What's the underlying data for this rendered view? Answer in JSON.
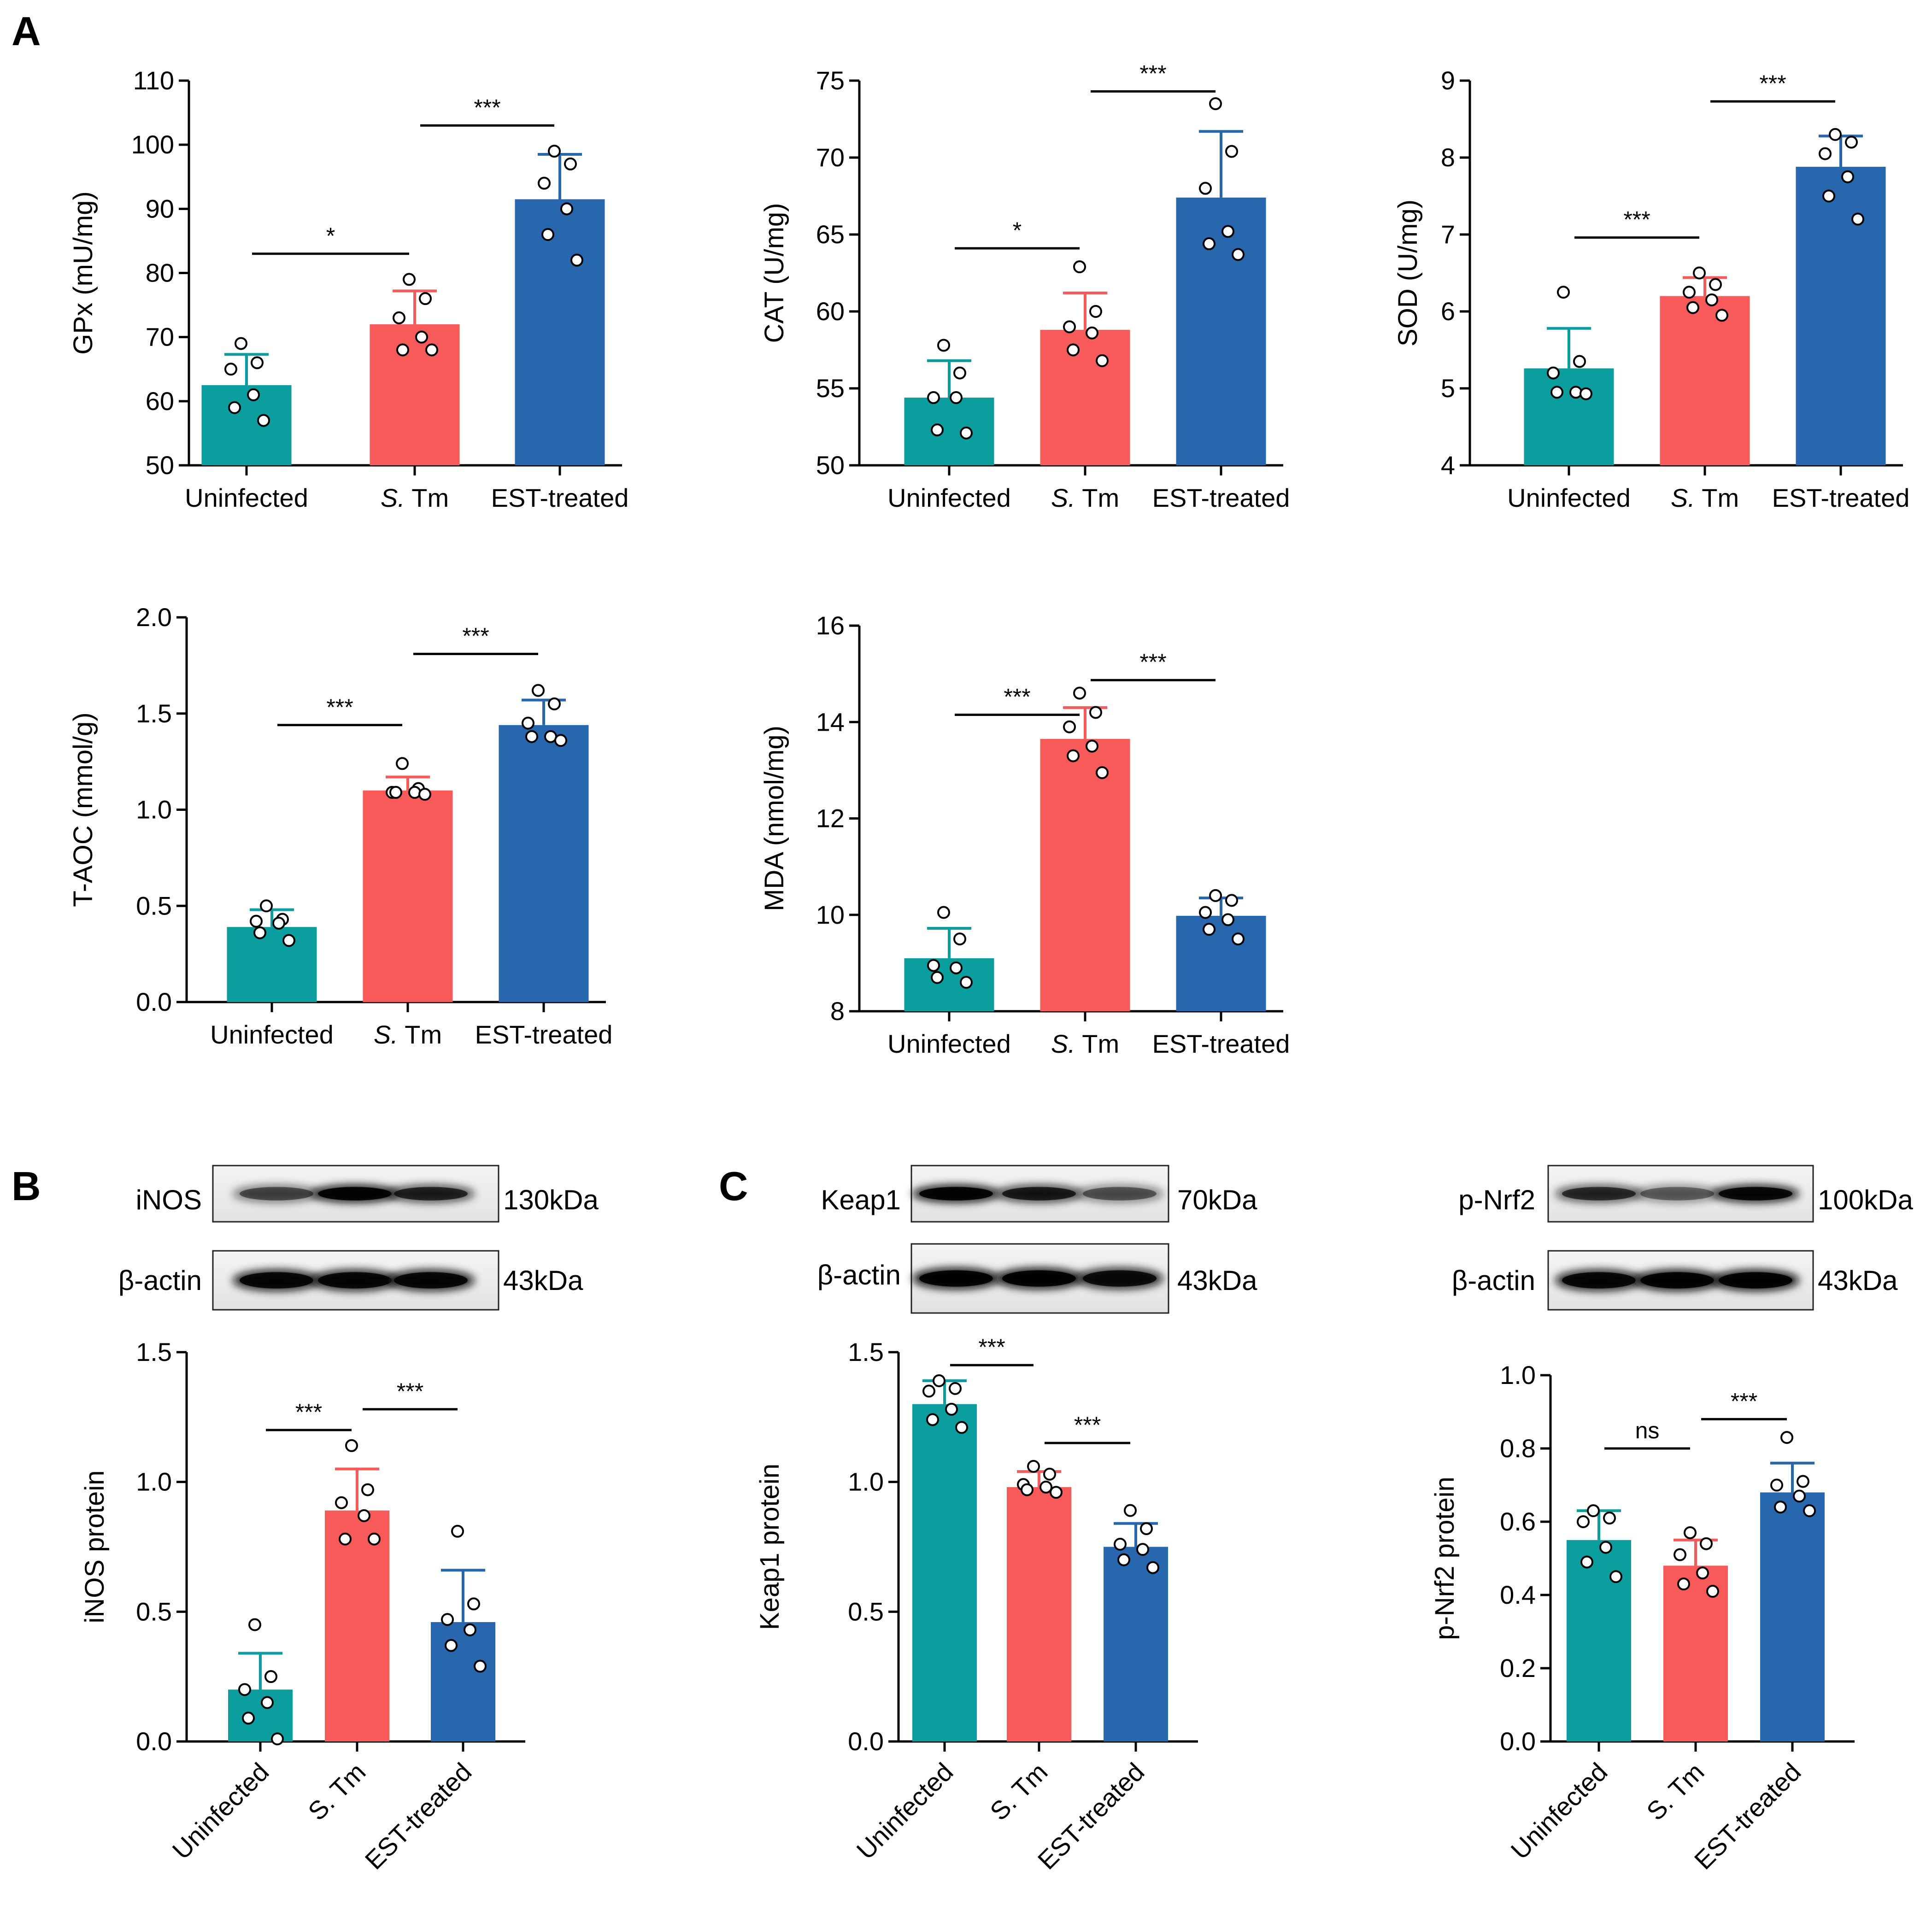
{
  "panel_labels": {
    "a": "A",
    "b": "B",
    "c": "C"
  },
  "colors": {
    "uninfected": "#0a9e9e",
    "s_tm": "#f85a5a",
    "est": "#2767ad"
  },
  "chart_data": [
    {
      "type": "bar",
      "ylabel": "GPx (mU/mg)",
      "categories": [
        "Uninfected",
        "S. Tm",
        "EST-treated"
      ],
      "ylim": [
        50,
        110
      ],
      "yticks": [
        "50",
        "60",
        "70",
        "80",
        "90",
        "100",
        "110"
      ],
      "values": [
        62.5,
        72,
        91.5
      ],
      "errors": [
        4.8,
        5.2,
        7.0
      ],
      "points": [
        [
          69,
          66,
          65,
          61,
          59,
          57
        ],
        [
          79,
          76,
          73,
          70,
          68,
          68
        ],
        [
          99,
          97,
          94,
          90,
          86,
          82
        ]
      ],
      "comparisons": [
        {
          "from": 0,
          "to": 1,
          "label": "*",
          "y": 83
        },
        {
          "from": 1,
          "to": 2,
          "label": "***",
          "y": 103
        }
      ]
    },
    {
      "type": "bar",
      "ylabel": "CAT (U/mg)",
      "categories": [
        "Uninfected",
        "S. Tm",
        "EST-treated"
      ],
      "ylim": [
        50,
        75
      ],
      "yticks": [
        "50",
        "55",
        "60",
        "65",
        "70",
        "75"
      ],
      "values": [
        54.4,
        58.8,
        67.4
      ],
      "errors": [
        2.4,
        2.4,
        4.3
      ],
      "points": [
        [
          57.8,
          56.0,
          54.4,
          54.4,
          52.3,
          52.1
        ],
        [
          62.9,
          60.0,
          59.0,
          58.6,
          57.5,
          56.8
        ],
        [
          73.5,
          70.4,
          68.0,
          65.2,
          64.4,
          63.7
        ]
      ],
      "comparisons": [
        {
          "from": 0,
          "to": 1,
          "label": "*",
          "y": 64.1
        },
        {
          "from": 1,
          "to": 2,
          "label": "***",
          "y": 74.3
        }
      ]
    },
    {
      "type": "bar",
      "ylabel": "SOD (U/mg)",
      "categories": [
        "Uninfected",
        "S. Tm",
        "EST-treated"
      ],
      "ylim": [
        4,
        9
      ],
      "yticks": [
        "4",
        "5",
        "6",
        "7",
        "8",
        "9"
      ],
      "values": [
        5.26,
        6.2,
        7.88
      ],
      "errors": [
        0.52,
        0.24,
        0.4
      ],
      "points": [
        [
          6.25,
          5.35,
          5.2,
          4.95,
          4.95,
          4.93
        ],
        [
          6.5,
          6.35,
          6.25,
          6.15,
          6.05,
          5.95
        ],
        [
          8.3,
          8.2,
          8.05,
          7.75,
          7.5,
          7.2
        ]
      ],
      "comparisons": [
        {
          "from": 0,
          "to": 1,
          "label": "***",
          "y": 6.96
        },
        {
          "from": 1,
          "to": 2,
          "label": "***",
          "y": 8.73
        }
      ]
    },
    {
      "type": "bar",
      "ylabel": "T-AOC (mmol/g)",
      "categories": [
        "Uninfected",
        "S. Tm",
        "EST-treated"
      ],
      "ylim": [
        0,
        2.0
      ],
      "yticks": [
        "0.0",
        "0.5",
        "1.0",
        "1.5",
        "2.0"
      ],
      "values": [
        0.39,
        1.1,
        1.44
      ],
      "errors": [
        0.09,
        0.07,
        0.13
      ],
      "points": [
        [
          0.5,
          0.43,
          0.42,
          0.41,
          0.36,
          0.32
        ],
        [
          1.24,
          1.11,
          1.09,
          1.09,
          1.09,
          1.08
        ],
        [
          1.62,
          1.55,
          1.45,
          1.38,
          1.38,
          1.36
        ]
      ],
      "comparisons": [
        {
          "from": 0,
          "to": 1,
          "label": "***",
          "y": 1.44
        },
        {
          "from": 1,
          "to": 2,
          "label": "***",
          "y": 1.81
        }
      ]
    },
    {
      "type": "bar",
      "ylabel": "MDA (nmol/mg)",
      "categories": [
        "Uninfected",
        "S. Tm",
        "EST-treated"
      ],
      "ylim": [
        8,
        16
      ],
      "yticks": [
        "8",
        "10",
        "12",
        "14",
        "16"
      ],
      "values": [
        9.1,
        13.65,
        9.98
      ],
      "errors": [
        0.62,
        0.65,
        0.37
      ],
      "points": [
        [
          10.05,
          9.5,
          8.95,
          8.9,
          8.7,
          8.6
        ],
        [
          14.6,
          14.2,
          13.9,
          13.5,
          13.3,
          12.95
        ],
        [
          10.4,
          10.3,
          10.05,
          9.9,
          9.7,
          9.5
        ]
      ],
      "comparisons": [
        {
          "from": 0,
          "to": 1,
          "label": "***",
          "y": 14.15
        },
        {
          "from": 1,
          "to": 2,
          "label": "***",
          "y": 14.87
        }
      ]
    },
    {
      "type": "bar",
      "ylabel": "iNOS protein",
      "categories": [
        "Uninfected",
        "S. Tm",
        "EST-treated"
      ],
      "ylim": [
        0,
        1.5
      ],
      "yticks": [
        "0.0",
        "0.5",
        "1.0",
        "1.5"
      ],
      "values": [
        0.2,
        0.89,
        0.46
      ],
      "errors": [
        0.14,
        0.16,
        0.2
      ],
      "points": [
        [
          0.45,
          0.25,
          0.2,
          0.15,
          0.09,
          0.01
        ],
        [
          1.14,
          0.97,
          0.92,
          0.87,
          0.78,
          0.78
        ],
        [
          0.81,
          0.53,
          0.47,
          0.43,
          0.37,
          0.29
        ]
      ],
      "comparisons": [
        {
          "from": 0,
          "to": 1,
          "label": "***",
          "y": 1.2
        },
        {
          "from": 1,
          "to": 2,
          "label": "***",
          "y": 1.28
        }
      ]
    },
    {
      "type": "bar",
      "ylabel": "Keap1 protein",
      "categories": [
        "Uninfected",
        "S. Tm",
        "EST-treated"
      ],
      "ylim": [
        0,
        1.5
      ],
      "yticks": [
        "0.0",
        "0.5",
        "1.0",
        "1.5"
      ],
      "values": [
        1.3,
        0.98,
        0.75
      ],
      "errors": [
        0.09,
        0.06,
        0.09
      ],
      "points": [
        [
          1.39,
          1.36,
          1.35,
          1.28,
          1.24,
          1.21
        ],
        [
          1.06,
          1.03,
          0.99,
          0.98,
          0.97,
          0.96
        ],
        [
          0.89,
          0.82,
          0.76,
          0.74,
          0.7,
          0.67
        ]
      ],
      "comparisons": [
        {
          "from": 0,
          "to": 1,
          "label": "***",
          "y": 1.45
        },
        {
          "from": 1,
          "to": 2,
          "label": "***",
          "y": 1.15
        }
      ]
    },
    {
      "type": "bar",
      "ylabel": "p-Nrf2  protein",
      "categories": [
        "Uninfected",
        "S. Tm",
        "EST-treated"
      ],
      "ylim": [
        0,
        1.0
      ],
      "yticks": [
        "0.0",
        "0.2",
        "0.4",
        "0.6",
        "0.8",
        "1.0"
      ],
      "values": [
        0.55,
        0.48,
        0.68
      ],
      "errors": [
        0.08,
        0.07,
        0.08
      ],
      "points": [
        [
          0.63,
          0.61,
          0.6,
          0.53,
          0.49,
          0.45
        ],
        [
          0.57,
          0.54,
          0.51,
          0.46,
          0.43,
          0.41
        ],
        [
          0.83,
          0.71,
          0.7,
          0.67,
          0.64,
          0.63
        ]
      ],
      "comparisons": [
        {
          "from": 0,
          "to": 1,
          "label": "ns",
          "y": 0.8
        },
        {
          "from": 1,
          "to": 2,
          "label": "***",
          "y": 0.88
        }
      ]
    }
  ],
  "blots": [
    {
      "protein": "iNOS",
      "protein_kda": "130kDa",
      "loading": "β-actin",
      "loading_kda": "43kDa"
    },
    {
      "protein": "Keap1",
      "protein_kda": "70kDa",
      "loading": "β-actin",
      "loading_kda": "43kDa"
    },
    {
      "protein": "p-Nrf2",
      "protein_kda": "100kDa",
      "loading": "β-actin",
      "loading_kda": "43kDa"
    }
  ]
}
